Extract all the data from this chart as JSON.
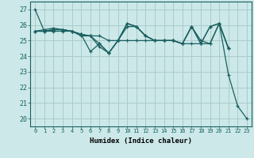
{
  "title": "",
  "xlabel": "Humidex (Indice chaleur)",
  "ylabel": "",
  "background_color": "#cce8e8",
  "grid_color": "#aacccc",
  "line_color": "#1a6060",
  "xlim": [
    -0.5,
    23.5
  ],
  "ylim": [
    19.5,
    27.5
  ],
  "xticks": [
    0,
    1,
    2,
    3,
    4,
    5,
    6,
    7,
    8,
    9,
    10,
    11,
    12,
    13,
    14,
    15,
    16,
    17,
    18,
    19,
    20,
    21,
    22,
    23
  ],
  "yticks": [
    20,
    21,
    22,
    23,
    24,
    25,
    26,
    27
  ],
  "series": [
    [
      27.0,
      25.6,
      25.7,
      25.7,
      25.6,
      25.4,
      24.3,
      24.8,
      24.2,
      25.0,
      26.1,
      25.9,
      25.3,
      25.0,
      25.0,
      25.0,
      24.8,
      25.9,
      25.0,
      24.8,
      26.1,
      22.8,
      20.8,
      20.0
    ],
    [
      25.6,
      25.6,
      25.7,
      25.7,
      25.6,
      25.4,
      25.3,
      25.3,
      25.0,
      25.0,
      25.0,
      25.0,
      25.0,
      25.0,
      25.0,
      25.0,
      24.8,
      24.8,
      24.8,
      24.8,
      26.1,
      24.5,
      null,
      null
    ],
    [
      25.6,
      25.7,
      25.8,
      25.7,
      25.6,
      25.4,
      25.3,
      24.8,
      24.2,
      25.0,
      25.9,
      25.9,
      25.3,
      25.0,
      25.0,
      25.0,
      24.8,
      25.9,
      24.8,
      25.9,
      26.1,
      24.5,
      null,
      null
    ],
    [
      25.6,
      25.6,
      25.6,
      25.6,
      25.6,
      25.3,
      25.3,
      24.6,
      24.2,
      25.0,
      26.1,
      25.9,
      25.3,
      25.0,
      25.0,
      25.0,
      24.8,
      25.9,
      24.8,
      25.9,
      26.1,
      24.5,
      null,
      null
    ]
  ]
}
